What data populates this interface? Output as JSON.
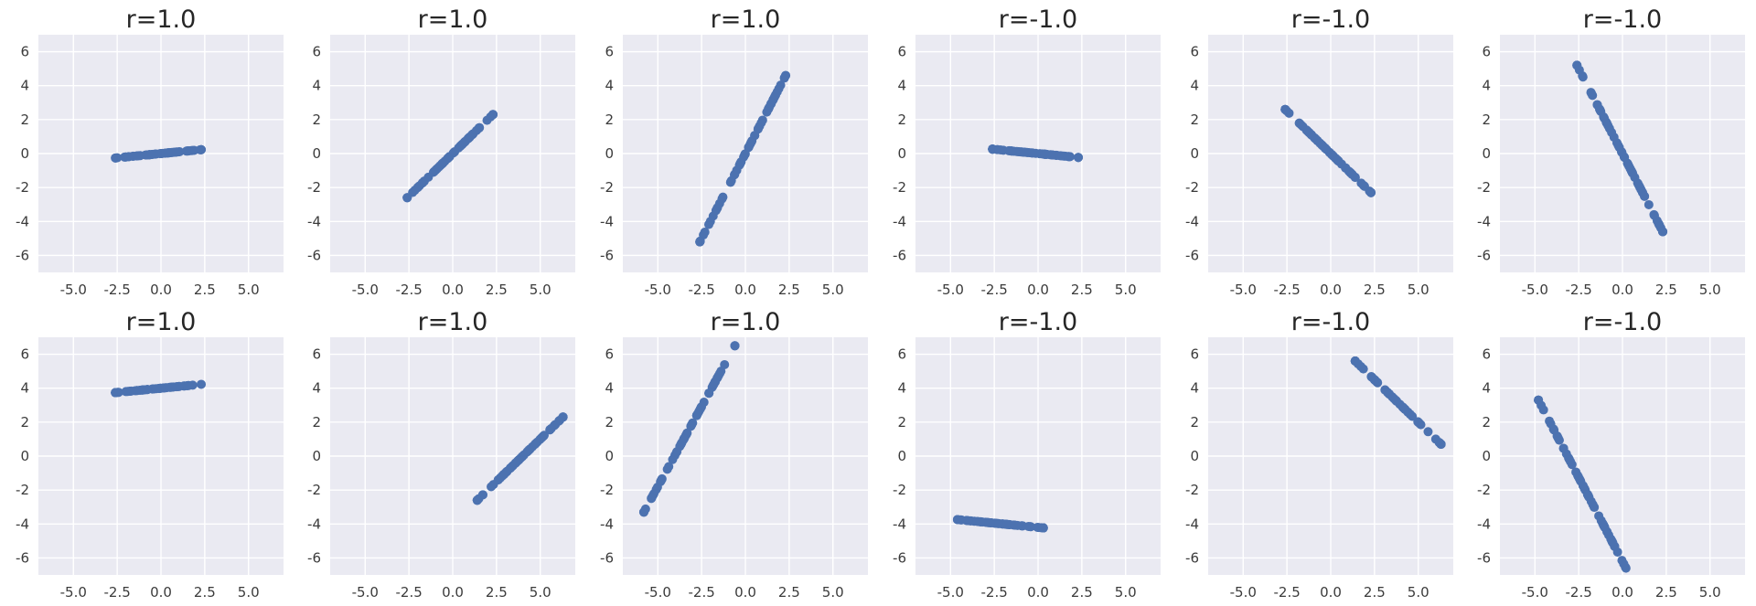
{
  "colors": {
    "background": "#eaeaf2",
    "grid": "#ffffff",
    "marker": "#4c72b0",
    "text": "#262626"
  },
  "chart_data": [
    {
      "type": "scatter",
      "title": "r=1.0",
      "xlim": [
        -7,
        7
      ],
      "ylim": [
        -7,
        7
      ],
      "grid": true,
      "xticks": [
        "-5.0",
        "-2.5",
        "0.0",
        "2.5",
        "5.0"
      ],
      "yticks": [
        "-6",
        "-4",
        "-2",
        "0",
        "2",
        "4",
        "6"
      ],
      "x_range": [
        -2.6,
        2.3
      ],
      "y_range": [
        -0.26,
        0.23
      ]
    },
    {
      "type": "scatter",
      "title": "r=1.0",
      "xlim": [
        -7,
        7
      ],
      "ylim": [
        -7,
        7
      ],
      "grid": true,
      "xticks": [
        "-5.0",
        "-2.5",
        "0.0",
        "2.5",
        "5.0"
      ],
      "yticks": [
        "-6",
        "-4",
        "-2",
        "0",
        "2",
        "4",
        "6"
      ],
      "x_range": [
        -2.6,
        2.3
      ],
      "y_range": [
        -2.6,
        2.3
      ]
    },
    {
      "type": "scatter",
      "title": "r=1.0",
      "xlim": [
        -7,
        7
      ],
      "ylim": [
        -7,
        7
      ],
      "grid": true,
      "xticks": [
        "-5.0",
        "-2.5",
        "0.0",
        "2.5",
        "5.0"
      ],
      "yticks": [
        "-6",
        "-4",
        "-2",
        "0",
        "2",
        "4",
        "6"
      ],
      "x_range": [
        -2.6,
        2.3
      ],
      "y_range": [
        -5.2,
        4.6
      ]
    },
    {
      "type": "scatter",
      "title": "r=-1.0",
      "xlim": [
        -7,
        7
      ],
      "ylim": [
        -7,
        7
      ],
      "grid": true,
      "xticks": [
        "-5.0",
        "-2.5",
        "0.0",
        "2.5",
        "5.0"
      ],
      "yticks": [
        "-6",
        "-4",
        "-2",
        "0",
        "2",
        "4",
        "6"
      ],
      "x_range": [
        -2.6,
        2.3
      ],
      "y_range": [
        0.26,
        -0.23
      ]
    },
    {
      "type": "scatter",
      "title": "r=-1.0",
      "xlim": [
        -7,
        7
      ],
      "ylim": [
        -7,
        7
      ],
      "grid": true,
      "xticks": [
        "-5.0",
        "-2.5",
        "0.0",
        "2.5",
        "5.0"
      ],
      "yticks": [
        "-6",
        "-4",
        "-2",
        "0",
        "2",
        "4",
        "6"
      ],
      "x_range": [
        -2.6,
        2.3
      ],
      "y_range": [
        2.6,
        -2.3
      ]
    },
    {
      "type": "scatter",
      "title": "r=-1.0",
      "xlim": [
        -7,
        7
      ],
      "ylim": [
        -7,
        7
      ],
      "grid": true,
      "xticks": [
        "-5.0",
        "-2.5",
        "0.0",
        "2.5",
        "5.0"
      ],
      "yticks": [
        "-6",
        "-4",
        "-2",
        "0",
        "2",
        "4",
        "6"
      ],
      "x_range": [
        -2.6,
        2.3
      ],
      "y_range": [
        5.2,
        -4.6
      ]
    },
    {
      "type": "scatter",
      "title": "r=1.0",
      "xlim": [
        -7,
        7
      ],
      "ylim": [
        -7,
        7
      ],
      "grid": true,
      "xticks": [
        "-5.0",
        "-2.5",
        "0.0",
        "2.5",
        "5.0"
      ],
      "yticks": [
        "-6",
        "-4",
        "-2",
        "0",
        "2",
        "4",
        "6"
      ],
      "x_range": [
        -2.6,
        2.3
      ],
      "y_range": [
        3.74,
        4.23
      ]
    },
    {
      "type": "scatter",
      "title": "r=1.0",
      "xlim": [
        -7,
        7
      ],
      "ylim": [
        -7,
        7
      ],
      "grid": true,
      "xticks": [
        "-5.0",
        "-2.5",
        "0.0",
        "2.5",
        "5.0"
      ],
      "yticks": [
        "-6",
        "-4",
        "-2",
        "0",
        "2",
        "4",
        "6"
      ],
      "x_range": [
        1.4,
        6.3
      ],
      "y_range": [
        -2.6,
        2.3
      ]
    },
    {
      "type": "scatter",
      "title": "r=1.0",
      "xlim": [
        -7,
        7
      ],
      "ylim": [
        -7,
        7
      ],
      "grid": true,
      "xticks": [
        "-5.0",
        "-2.5",
        "0.0",
        "2.5",
        "5.0"
      ],
      "yticks": [
        "-6",
        "-4",
        "-2",
        "0",
        "2",
        "4",
        "6"
      ],
      "x_range": [
        -5.8,
        -0.6
      ],
      "y_range": [
        -3.3,
        6.5
      ]
    },
    {
      "type": "scatter",
      "title": "r=-1.0",
      "xlim": [
        -7,
        7
      ],
      "ylim": [
        -7,
        7
      ],
      "grid": true,
      "xticks": [
        "-5.0",
        "-2.5",
        "0.0",
        "2.5",
        "5.0"
      ],
      "yticks": [
        "-6",
        "-4",
        "-2",
        "0",
        "2",
        "4",
        "6"
      ],
      "x_range": [
        -4.6,
        0.3
      ],
      "y_range": [
        -3.74,
        -4.23
      ]
    },
    {
      "type": "scatter",
      "title": "r=-1.0",
      "xlim": [
        -7,
        7
      ],
      "ylim": [
        -7,
        7
      ],
      "grid": true,
      "xticks": [
        "-5.0",
        "-2.5",
        "0.0",
        "2.5",
        "5.0"
      ],
      "yticks": [
        "-6",
        "-4",
        "-2",
        "0",
        "2",
        "4",
        "6"
      ],
      "x_range": [
        1.4,
        6.3
      ],
      "y_range": [
        5.6,
        0.7
      ]
    },
    {
      "type": "scatter",
      "title": "r=-1.0",
      "xlim": [
        -7,
        7
      ],
      "ylim": [
        -7,
        7
      ],
      "grid": true,
      "xticks": [
        "-5.0",
        "-2.5",
        "0.0",
        "2.5",
        "5.0"
      ],
      "yticks": [
        "-6",
        "-4",
        "-2",
        "0",
        "2",
        "4",
        "6"
      ],
      "x_range": [
        -4.8,
        0.2
      ],
      "y_range": [
        3.3,
        -6.6
      ]
    }
  ]
}
